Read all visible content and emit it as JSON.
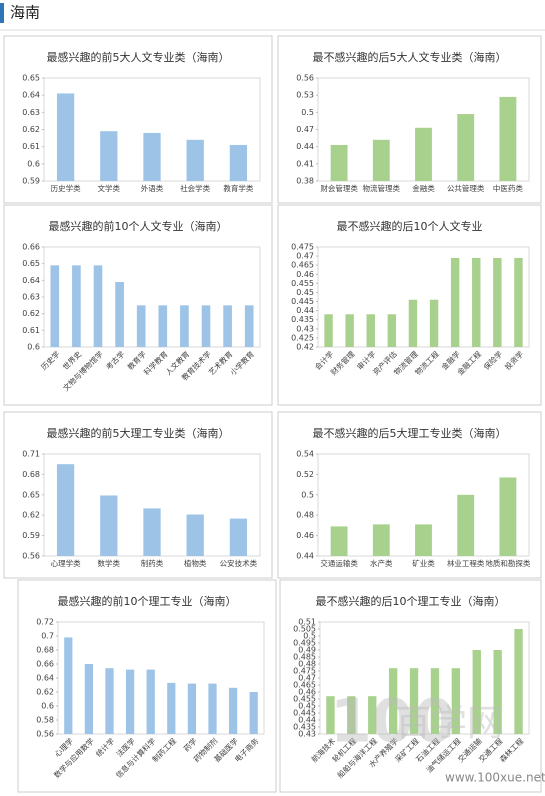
{
  "header": {
    "title": "海南"
  },
  "watermark": {
    "logo": "100",
    "name": "百学网",
    "url": "www.100xue.net"
  },
  "chart_data": [
    {
      "type": "bar",
      "title": "最感兴趣的前5大人文专业类（海南）",
      "color": "#9dc3e6",
      "grid": false,
      "categories": [
        "历史学类",
        "文学类",
        "外语类",
        "社会学类",
        "教育学类"
      ],
      "values": [
        0.641,
        0.619,
        0.618,
        0.614,
        0.611
      ],
      "ylim": [
        0.59,
        0.65
      ],
      "yticks": [
        0.59,
        0.6,
        0.61,
        0.62,
        0.63,
        0.64,
        0.65
      ]
    },
    {
      "type": "bar",
      "title": "最不感兴趣的后5大人文专业类（海南）",
      "color": "#a9d18e",
      "grid": false,
      "categories": [
        "财会管理类",
        "物流管理类",
        "金融类",
        "公共管理类",
        "中医药类"
      ],
      "values": [
        0.443,
        0.452,
        0.473,
        0.497,
        0.527
      ],
      "ylim": [
        0.38,
        0.56
      ],
      "yticks": [
        0.38,
        0.41,
        0.44,
        0.47,
        0.5,
        0.53,
        0.56
      ]
    },
    {
      "type": "bar",
      "title": "最感兴趣的前10个人文专业（海南）",
      "color": "#9dc3e6",
      "grid": false,
      "categories": [
        "历史学",
        "世界史",
        "文物与博物馆学",
        "考古学",
        "教育学",
        "科学教育",
        "人文教育",
        "教育技术学",
        "艺术教育",
        "小学教育"
      ],
      "values": [
        0.649,
        0.649,
        0.649,
        0.639,
        0.625,
        0.625,
        0.625,
        0.625,
        0.625,
        0.625
      ],
      "ylim": [
        0.6,
        0.66
      ],
      "yticks": [
        0.6,
        0.61,
        0.62,
        0.63,
        0.64,
        0.65,
        0.66
      ]
    },
    {
      "type": "bar",
      "title": "最不感兴趣的后10个人文专业",
      "color": "#a9d18e",
      "grid": false,
      "categories": [
        "会计学",
        "财务管理",
        "审计学",
        "资产评估",
        "物流管理",
        "物流工程",
        "金融学",
        "金融工程",
        "保险学",
        "投资学"
      ],
      "values": [
        0.438,
        0.438,
        0.438,
        0.438,
        0.446,
        0.446,
        0.469,
        0.469,
        0.469,
        0.469
      ],
      "ylim": [
        0.42,
        0.475
      ],
      "yticks": [
        0.42,
        0.425,
        0.43,
        0.435,
        0.44,
        0.445,
        0.45,
        0.455,
        0.46,
        0.465,
        0.47,
        0.475
      ]
    },
    {
      "type": "bar",
      "title": "最感兴趣的前5大理工专业类（海南）",
      "color": "#9dc3e6",
      "grid": false,
      "categories": [
        "心理学类",
        "数学类",
        "制药类",
        "植物类",
        "公安技术类"
      ],
      "values": [
        0.695,
        0.649,
        0.63,
        0.621,
        0.615
      ],
      "ylim": [
        0.56,
        0.71
      ],
      "yticks": [
        0.56,
        0.59,
        0.62,
        0.65,
        0.68,
        0.71
      ]
    },
    {
      "type": "bar",
      "title": "最不感兴趣的后5大理工专业类（海南）",
      "color": "#a9d18e",
      "grid": false,
      "categories": [
        "交通运输类",
        "水产类",
        "矿业类",
        "林业工程类",
        "地质和勘探类"
      ],
      "values": [
        0.469,
        0.471,
        0.471,
        0.5,
        0.517
      ],
      "ylim": [
        0.44,
        0.54
      ],
      "yticks": [
        0.44,
        0.46,
        0.48,
        0.5,
        0.52,
        0.54
      ]
    },
    {
      "type": "bar",
      "title": "最感兴趣的前10个理工专业（海南）",
      "color": "#9dc3e6",
      "grid": false,
      "categories": [
        "心理学",
        "数学与应用数学",
        "统计学",
        "法医学",
        "信息与计算科学",
        "制药工程",
        "药学",
        "药物制剂",
        "基础医学",
        "电子商务"
      ],
      "values": [
        0.698,
        0.66,
        0.654,
        0.652,
        0.652,
        0.633,
        0.632,
        0.632,
        0.626,
        0.62
      ],
      "ylim": [
        0.56,
        0.72
      ],
      "yticks": [
        0.56,
        0.58,
        0.6,
        0.62,
        0.64,
        0.66,
        0.68,
        0.7,
        0.72
      ]
    },
    {
      "type": "bar",
      "title": "最不感兴趣的后10个理工专业（海南）",
      "color": "#a9d18e",
      "grid": false,
      "categories": [
        "航海技术",
        "轮机工程",
        "船舶与海洋工程",
        "水产养殖学",
        "采矿工程",
        "石油工程",
        "油气储运工程",
        "交通运输",
        "交通工程",
        "森林工程"
      ],
      "values": [
        0.457,
        0.457,
        0.457,
        0.477,
        0.477,
        0.477,
        0.477,
        0.49,
        0.49,
        0.505
      ],
      "ylim": [
        0.43,
        0.51
      ],
      "yticks": [
        0.43,
        0.435,
        0.44,
        0.445,
        0.45,
        0.455,
        0.46,
        0.465,
        0.47,
        0.475,
        0.48,
        0.485,
        0.49,
        0.495,
        0.5,
        0.505,
        0.51
      ]
    }
  ]
}
